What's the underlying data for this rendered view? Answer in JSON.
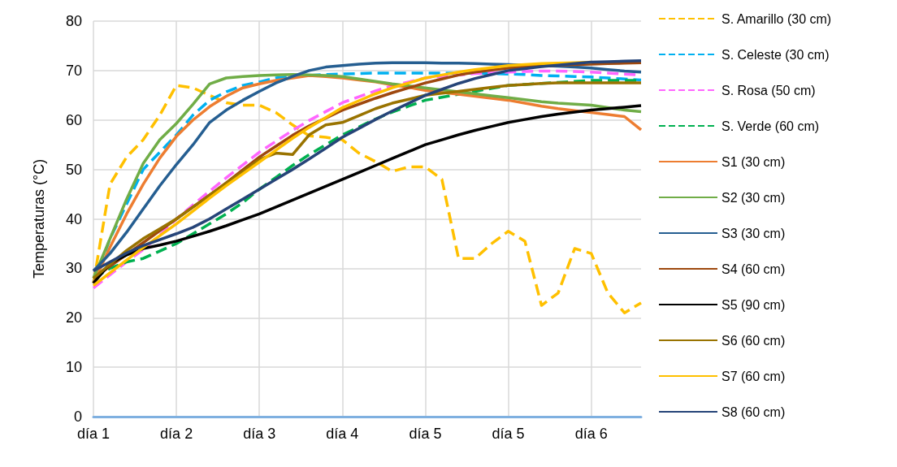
{
  "chart_data": {
    "type": "line",
    "ylabel": "Temperaturas (°C)",
    "ylim": [
      0,
      80
    ],
    "yticks": [
      0,
      10,
      20,
      30,
      40,
      50,
      60,
      70,
      80
    ],
    "categories": [
      "día 1",
      null,
      null,
      null,
      null,
      "día 2",
      null,
      null,
      null,
      null,
      "día 3",
      null,
      null,
      null,
      null,
      "día 4",
      null,
      null,
      null,
      null,
      "día 5",
      null,
      null,
      null,
      null,
      "día 5",
      null,
      null,
      null,
      null,
      "día 6",
      null,
      null,
      null
    ],
    "grid": true,
    "legend": "right",
    "marker": "none",
    "series": [
      {
        "name": "S. Amarillo (30 cm)",
        "color": "#ffc000",
        "line_style": "dashed",
        "values": [
          27,
          47,
          52.5,
          56,
          61,
          67,
          66.5,
          65,
          63.5,
          63,
          63,
          61.5,
          59,
          56.8,
          56.5,
          56,
          53.3,
          51.6,
          49.6,
          50.5,
          50.5,
          48,
          32,
          32,
          35,
          37.5,
          35.5,
          22.5,
          25,
          34,
          33,
          25,
          21,
          23
        ]
      },
      {
        "name": "S. Celeste (30 cm)",
        "color": "#00b0f0",
        "line_style": "dashed",
        "values": [
          27,
          36,
          43,
          50,
          53.5,
          57,
          61,
          64,
          65.7,
          67,
          67.7,
          68.5,
          68.8,
          69,
          69.2,
          69.3,
          69.4,
          69.5,
          69.5,
          69.5,
          69.5,
          69.5,
          69.5,
          69.5,
          69.4,
          69.3,
          69.2,
          69,
          68.9,
          68.8,
          68.7,
          68.5,
          68.3,
          68.1
        ]
      },
      {
        "name": "S. Rosa (50 cm)",
        "color": "#ff66ff",
        "line_style": "dashed",
        "values": [
          26,
          28.7,
          31.3,
          33.8,
          36.7,
          40,
          42.8,
          45.6,
          48.3,
          50.9,
          53.5,
          55.7,
          57.9,
          59.9,
          61.7,
          63.5,
          64.7,
          65.9,
          66.9,
          67.7,
          68.5,
          68.8,
          69.1,
          69.4,
          69.5,
          69.7,
          69.8,
          69.9,
          69.9,
          69.8,
          69.7,
          69.5,
          69.3,
          69.1
        ]
      },
      {
        "name": "S. Verde (60 cm)",
        "color": "#00b050",
        "line_style": "dashed",
        "values": [
          28,
          30,
          31.3,
          32,
          33.5,
          35,
          37,
          39,
          41,
          43.3,
          46,
          48.4,
          50.8,
          53,
          55,
          57,
          58.6,
          60.2,
          61.6,
          62.8,
          64,
          64.6,
          65.2,
          65.8,
          66.4,
          67,
          67.2,
          67.4,
          67.6,
          67.8,
          68,
          68,
          68,
          68
        ]
      },
      {
        "name": "S1 (30 cm)",
        "color": "#ed7d31",
        "line_style": "solid",
        "values": [
          27,
          34.3,
          41,
          47,
          52.3,
          56.7,
          60,
          62.7,
          64.8,
          66.5,
          67.3,
          68,
          68.5,
          69,
          68.8,
          68.5,
          68.1,
          67.7,
          67.1,
          66.6,
          66,
          65.6,
          65.2,
          64.8,
          64.4,
          64,
          63.4,
          62.8,
          62.3,
          61.9,
          61.5,
          61.1,
          60.7,
          58
        ]
      },
      {
        "name": "S2 (30 cm)",
        "color": "#70ad47",
        "line_style": "solid",
        "values": [
          28,
          36,
          44,
          51.2,
          56,
          59.3,
          63.2,
          67.3,
          68.5,
          68.8,
          69,
          69.1,
          69.2,
          69.1,
          69,
          68.8,
          68.3,
          67.8,
          67.3,
          66.9,
          66.5,
          66.1,
          65.7,
          65.3,
          64.9,
          64.5,
          64.1,
          63.7,
          63.4,
          63.2,
          63,
          62.5,
          62,
          61.7
        ]
      },
      {
        "name": "S3 (30 cm)",
        "color": "#255e91",
        "line_style": "solid",
        "values": [
          29.5,
          33,
          37.3,
          42,
          46.7,
          51,
          55,
          59.5,
          62,
          64,
          65.8,
          67.5,
          68.8,
          70,
          70.7,
          71,
          71.3,
          71.5,
          71.6,
          71.6,
          71.6,
          71.5,
          71.5,
          71.4,
          71.3,
          71.2,
          71.1,
          71,
          70.9,
          70.7,
          70.5,
          70.2,
          69.9,
          69.7
        ]
      },
      {
        "name": "S4 (60 cm)",
        "color": "#9e480e",
        "line_style": "solid",
        "values": [
          28,
          30.4,
          32.8,
          35.2,
          37.6,
          40,
          42.4,
          44.8,
          47.3,
          49.9,
          52.5,
          54.7,
          56.9,
          58.8,
          60.4,
          62,
          63.2,
          64.4,
          65.5,
          66.5,
          67.5,
          68.3,
          69.1,
          69.7,
          70.1,
          70.5,
          70.7,
          70.9,
          71.1,
          71.2,
          71.3,
          71.4,
          71.5,
          71.6
        ]
      },
      {
        "name": "S5 (90 cm)",
        "color": "#000000",
        "line_style": "solid",
        "values": [
          27,
          31,
          32.7,
          34,
          34.7,
          35.5,
          36.5,
          37.5,
          38.6,
          39.8,
          41,
          42.4,
          43.8,
          45.2,
          46.6,
          48,
          49.4,
          50.8,
          52.2,
          53.6,
          55,
          56,
          57,
          57.9,
          58.7,
          59.5,
          60.1,
          60.7,
          61.2,
          61.6,
          62,
          62.3,
          62.6,
          62.9
        ]
      },
      {
        "name": "S6 (60 cm)",
        "color": "#997300",
        "line_style": "solid",
        "values": [
          28,
          30.8,
          33.6,
          36,
          38,
          40,
          42.4,
          44.8,
          47.2,
          49.6,
          52,
          53.3,
          53,
          57,
          59,
          59.5,
          60.9,
          62.3,
          63.4,
          64.2,
          65,
          65.4,
          65.8,
          66.2,
          66.6,
          67,
          67.2,
          67.4,
          67.5,
          67.5,
          67.5,
          67.5,
          67.5,
          67.5
        ]
      },
      {
        "name": "S7 (60 cm)",
        "color": "#ffc000",
        "line_style": "solid",
        "values": [
          26.5,
          29.1,
          31.7,
          34.2,
          36.6,
          39,
          41.6,
          44.2,
          46.7,
          49.1,
          51.5,
          53.9,
          56.3,
          58.5,
          60.5,
          62.5,
          63.9,
          65.3,
          66.5,
          67.5,
          68.5,
          69.1,
          69.7,
          70.2,
          70.6,
          71,
          71.2,
          71.4,
          71.5,
          71.6,
          71.7,
          null,
          null,
          null
        ]
      },
      {
        "name": "S8 (60 cm)",
        "color": "#264478",
        "line_style": "solid",
        "values": [
          29.5,
          31.3,
          33.1,
          34.6,
          35.8,
          37,
          38.3,
          40,
          42,
          44,
          46,
          48,
          50,
          52.1,
          54.3,
          56.5,
          58.3,
          60.1,
          61.8,
          63.4,
          65,
          66.2,
          67.4,
          68.4,
          69.2,
          70,
          70.4,
          70.8,
          71.1,
          71.4,
          71.7,
          71.8,
          71.9,
          72
        ]
      }
    ]
  }
}
